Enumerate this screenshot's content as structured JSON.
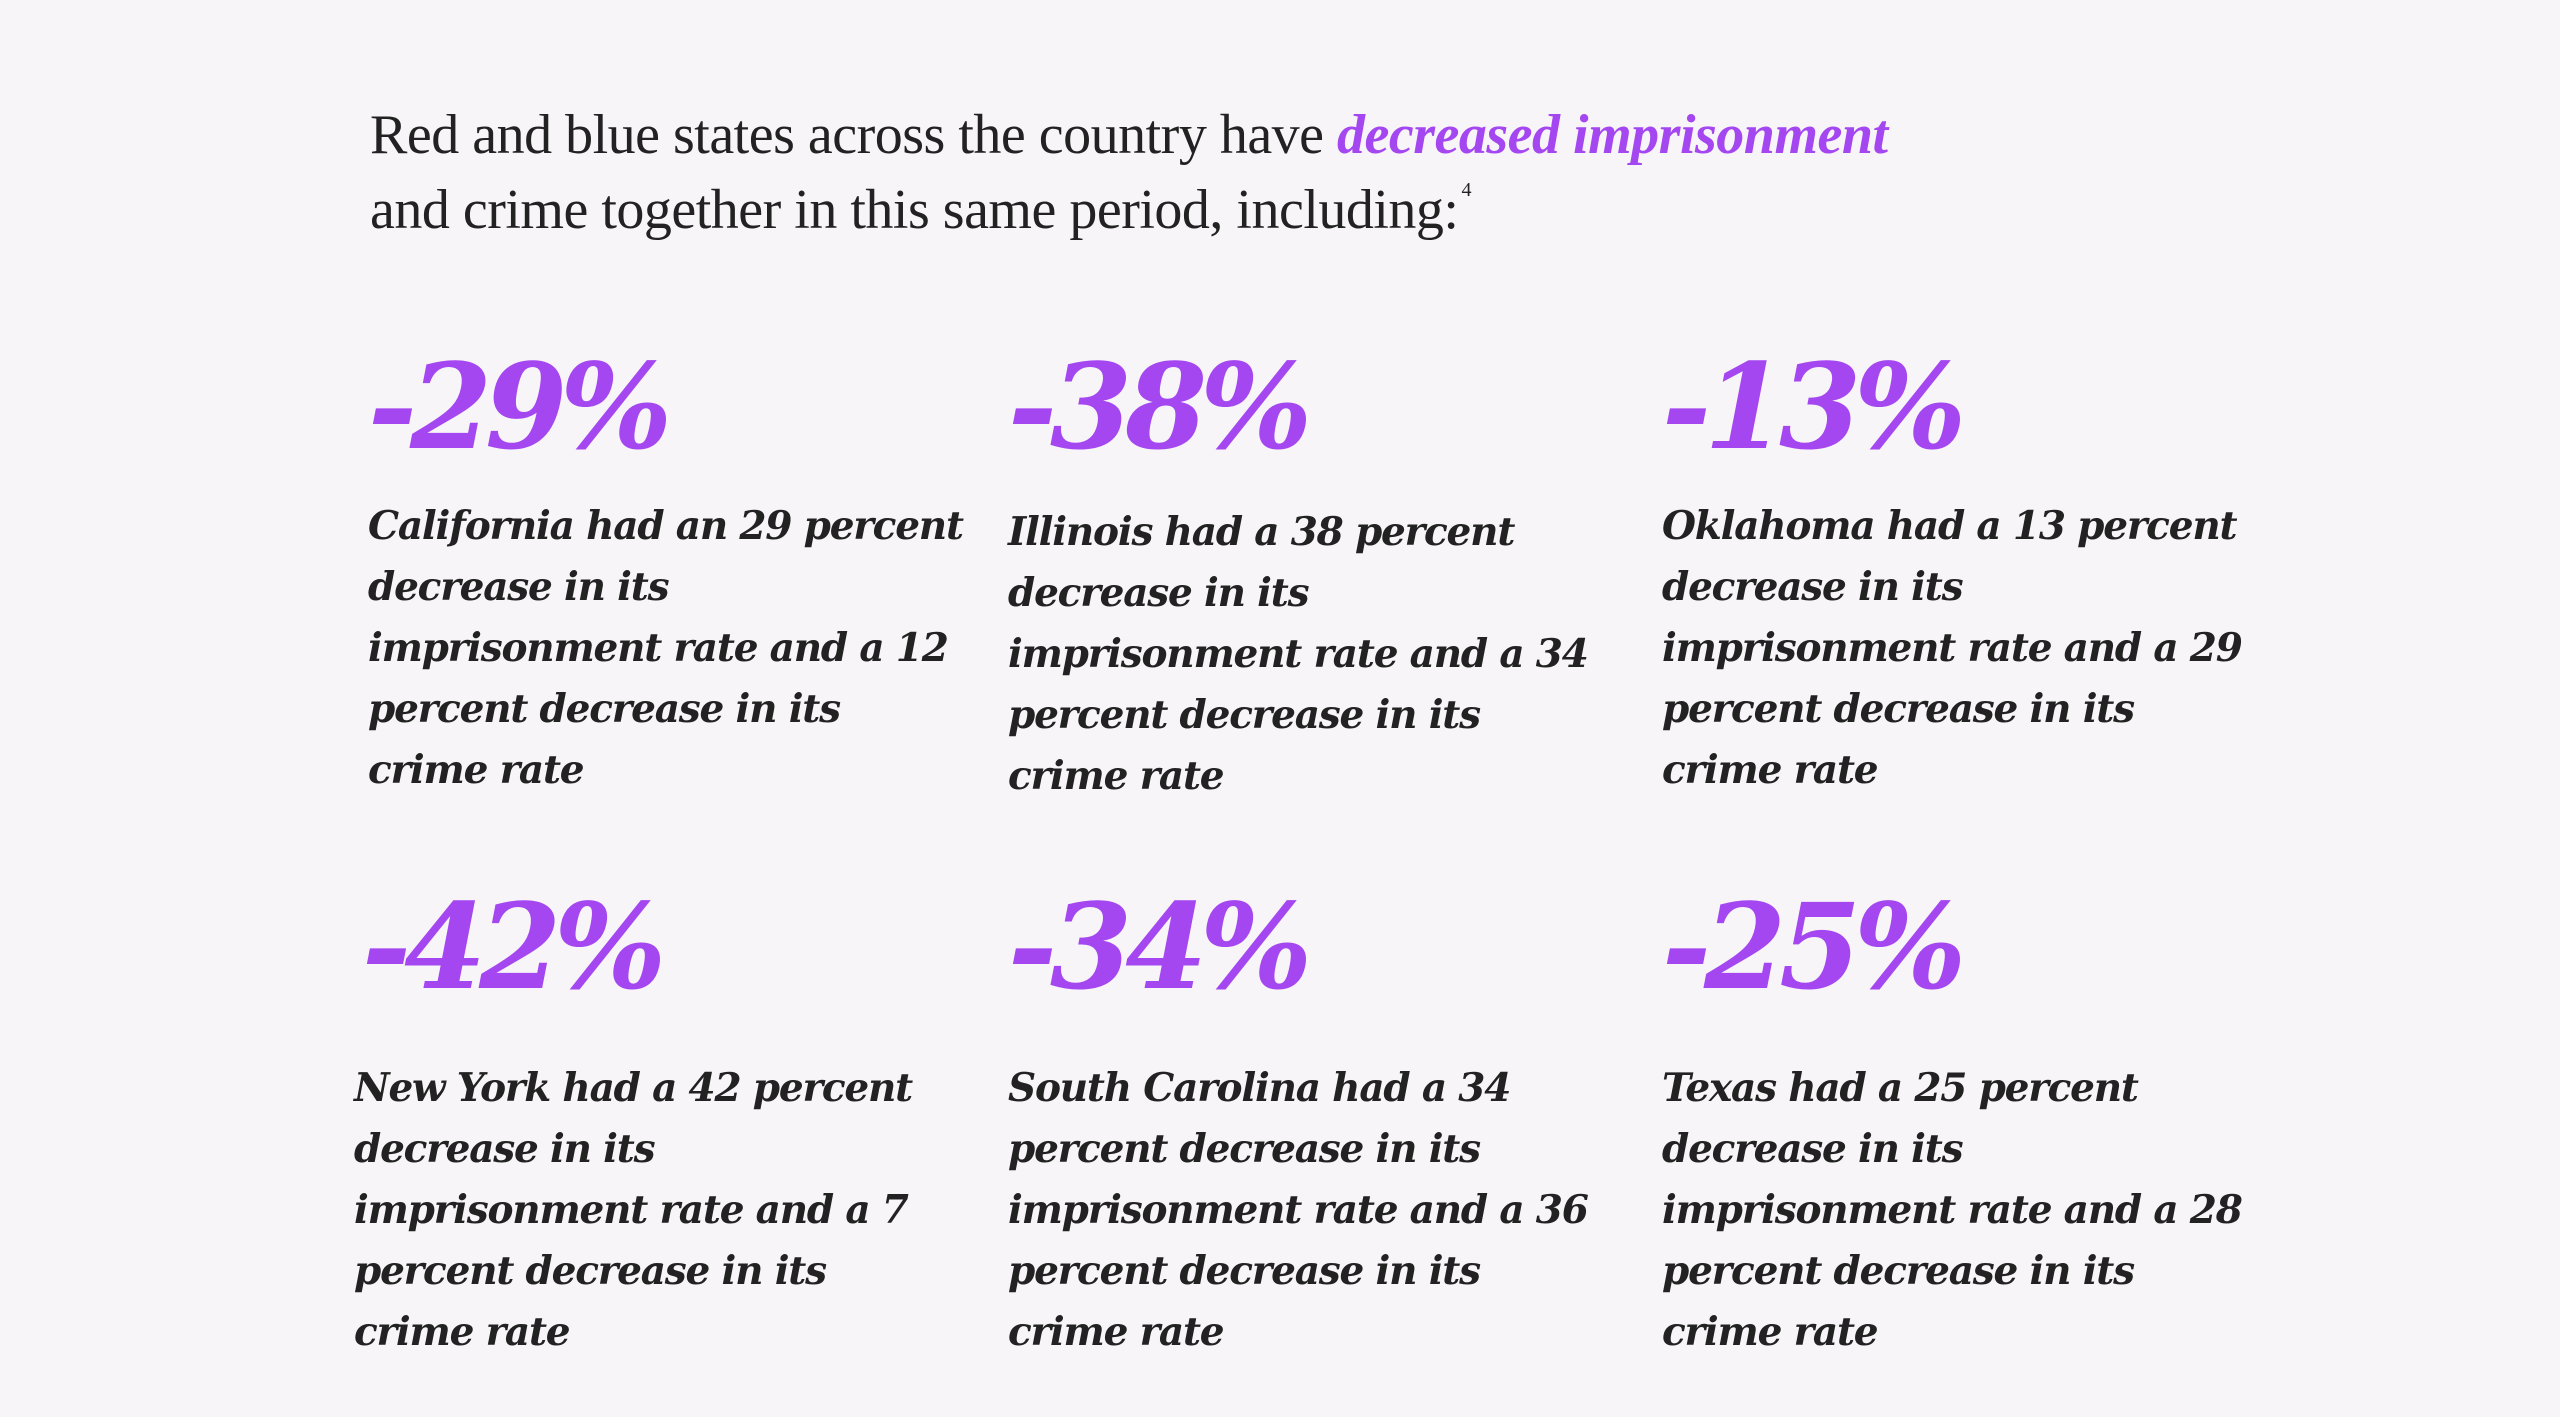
{
  "headline": {
    "part1": "Red and blue states across the country have ",
    "highlight": "decreased imprisonment",
    "part2": "and crime together in this same period, including:",
    "footnote": "4"
  },
  "colors": {
    "accent": "#a447f0",
    "text": "#222222",
    "background": "#f7f5f7"
  },
  "stats": [
    {
      "value": "-29%",
      "description": "California had an 29 percent decrease in its imprisonment rate and a 12 percent decrease in its crime rate"
    },
    {
      "value": "-38%",
      "description": "Illinois had a 38 percent decrease in its imprisonment rate and a 34 percent decrease in its crime rate"
    },
    {
      "value": "-13%",
      "description": "Oklahoma had a 13 percent decrease in its imprisonment rate and a 29 percent decrease in its crime rate"
    },
    {
      "value": "-42%",
      "description": "New York had a 42 percent decrease in its imprisonment rate and a 7 percent decrease in its crime rate"
    },
    {
      "value": "-34%",
      "description": "South Carolina had a 34 percent decrease in its imprisonment rate and a 36 percent decrease in its crime rate"
    },
    {
      "value": "-25%",
      "description": "Texas had a 25 percent decrease in its imprisonment rate and a 28 percent decrease in its crime rate"
    }
  ]
}
